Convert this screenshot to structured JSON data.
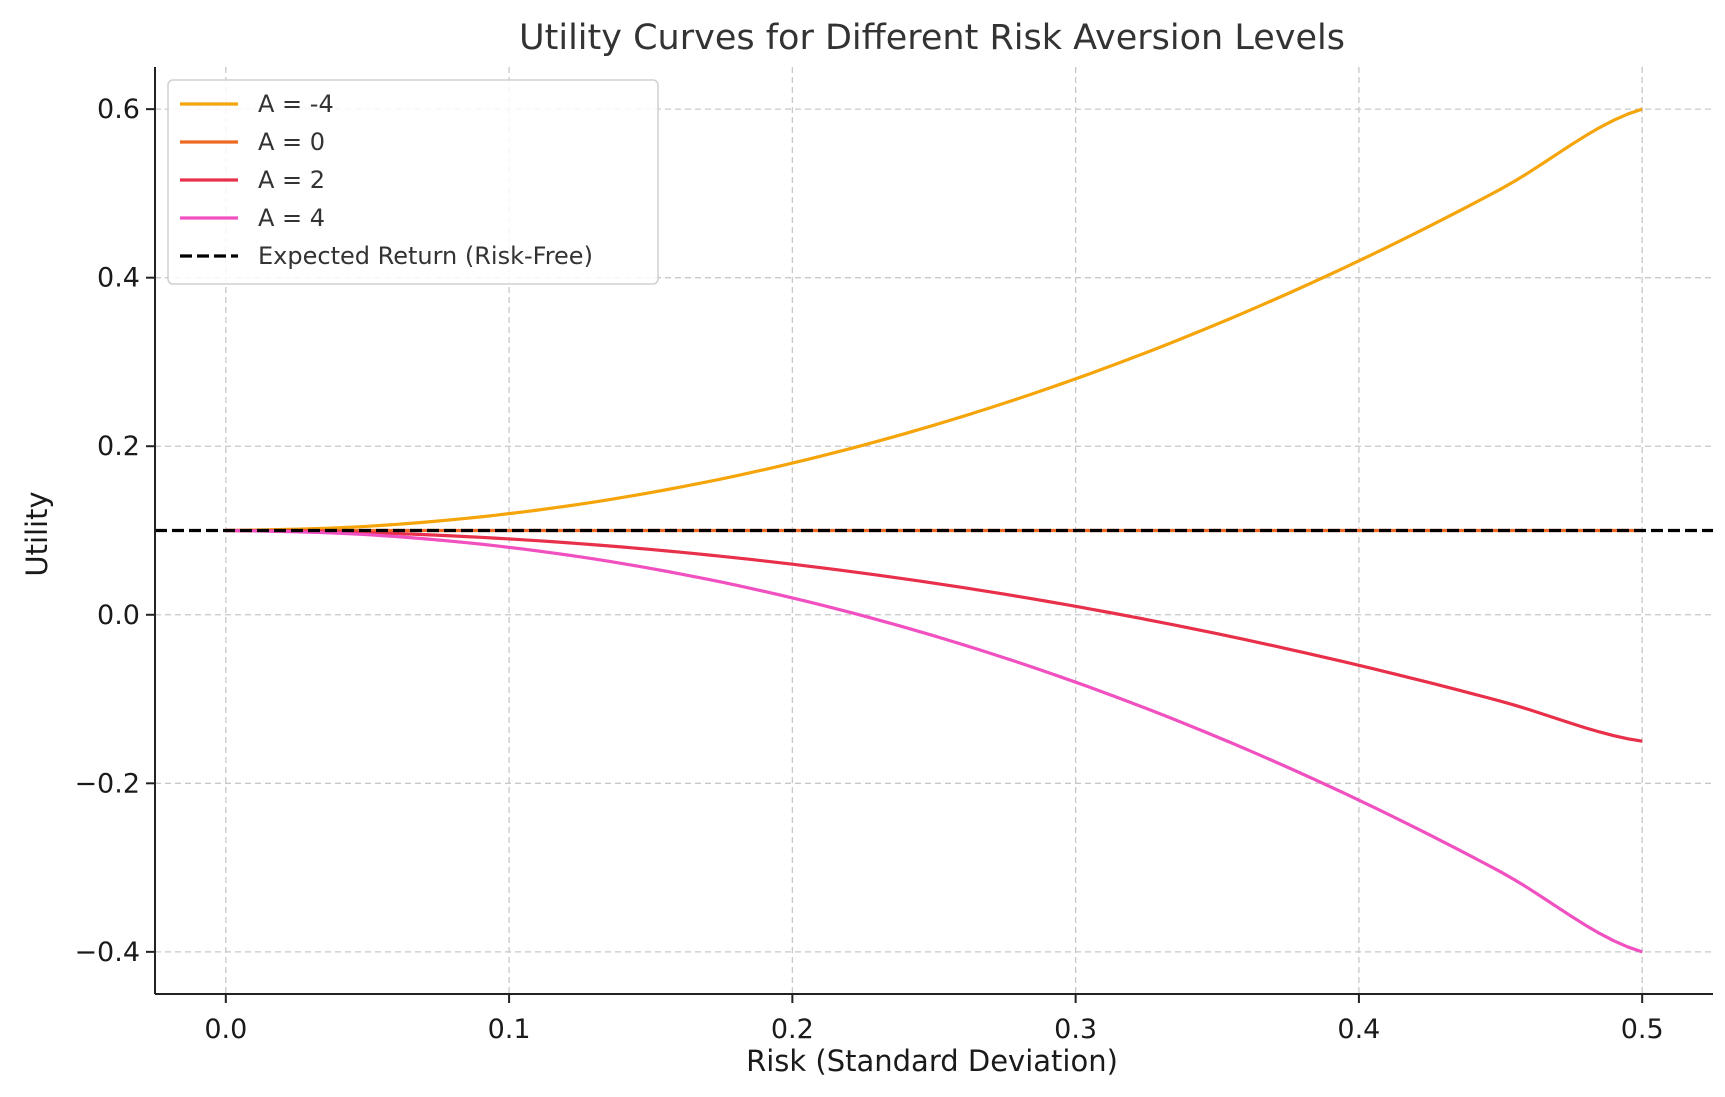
{
  "chart_data": {
    "type": "line",
    "title": "Utility Curves for Different Risk Aversion Levels",
    "xlabel": "Risk (Standard Deviation)",
    "ylabel": "Utility",
    "xlim": [
      -0.025,
      0.525
    ],
    "ylim": [
      -0.45,
      0.65
    ],
    "x_ticks": [
      0.0,
      0.1,
      0.2,
      0.3,
      0.4,
      0.5
    ],
    "x_tick_labels": [
      "0.0",
      "0.1",
      "0.2",
      "0.3",
      "0.4",
      "0.5"
    ],
    "y_ticks": [
      -0.4,
      -0.2,
      0.0,
      0.2,
      0.4,
      0.6
    ],
    "y_tick_labels": [
      "−0.4",
      "−0.2",
      "0.0",
      "0.2",
      "0.4",
      "0.6"
    ],
    "grid": true,
    "legend_position": "top-left",
    "x": [
      0.0,
      0.05,
      0.1,
      0.15,
      0.2,
      0.25,
      0.3,
      0.35,
      0.4,
      0.45,
      0.5
    ],
    "series": [
      {
        "name": "A = -4",
        "color": "#f5a50a",
        "style": "solid",
        "values": [
          0.1,
          0.105,
          0.12,
          0.145,
          0.18,
          0.225,
          0.28,
          0.345,
          0.42,
          0.505,
          0.6
        ]
      },
      {
        "name": "A = 0",
        "color": "#ee6a22",
        "style": "solid",
        "values": [
          0.1,
          0.1,
          0.1,
          0.1,
          0.1,
          0.1,
          0.1,
          0.1,
          0.1,
          0.1,
          0.1
        ]
      },
      {
        "name": "A = 2",
        "color": "#e8304a",
        "style": "solid",
        "values": [
          0.1,
          0.0975,
          0.09,
          0.0775,
          0.06,
          0.0375,
          0.01,
          -0.0225,
          -0.06,
          -0.1025,
          -0.15
        ]
      },
      {
        "name": "A = 4",
        "color": "#f050c0",
        "style": "solid",
        "values": [
          0.1,
          0.095,
          0.08,
          0.055,
          0.02,
          -0.025,
          -0.08,
          -0.145,
          -0.22,
          -0.305,
          -0.4
        ]
      },
      {
        "name": "Expected Return (Risk-Free)",
        "color": "#000000",
        "style": "dashed",
        "hline": 0.1
      }
    ]
  }
}
